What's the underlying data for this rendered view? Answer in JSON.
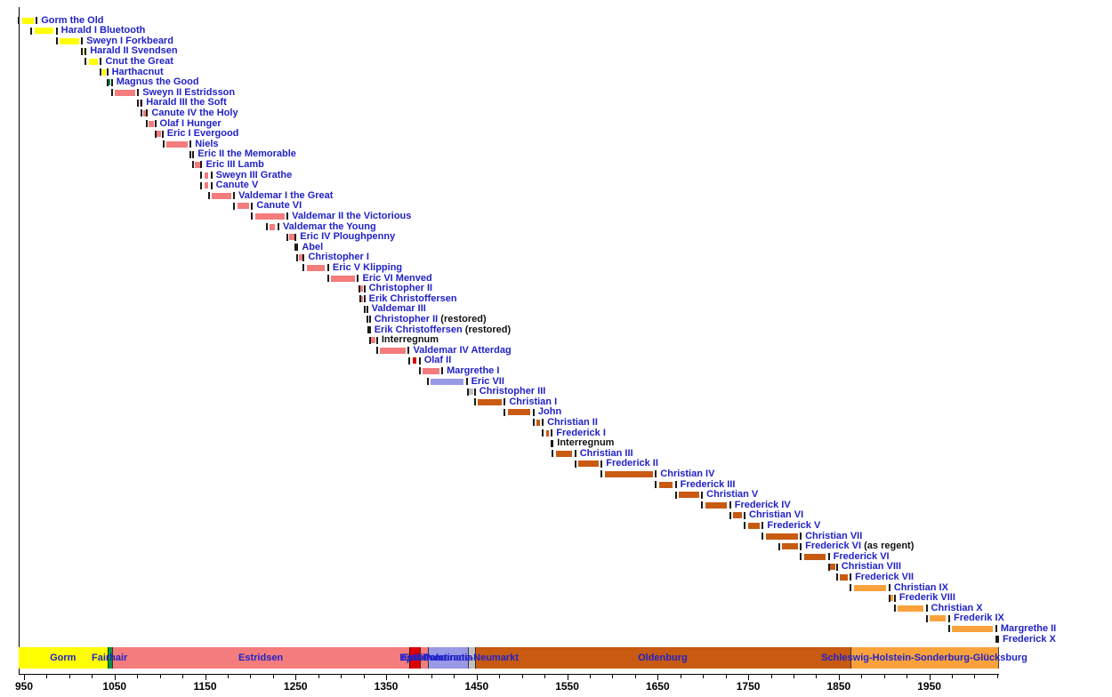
{
  "colors": {
    "monarch_label": "#2222C8",
    "suffix_label": "#111111",
    "tick": "#1a1a1a",
    "axis": "#000000",
    "background": "#ffffff"
  },
  "chart_data": {
    "type": "timeline",
    "title": "",
    "x_axis": {
      "tick_labels": [
        950,
        1050,
        1150,
        1250,
        1350,
        1450,
        1550,
        1650,
        1750,
        1850,
        1950
      ],
      "minor_tick_step": 25,
      "domain": [
        943,
        2027
      ],
      "grid": false
    },
    "houses": {
      "gorm": {
        "label": "Gorm",
        "color": "#FFFF00"
      },
      "fairhair": {
        "label": "Fairhair",
        "color": "#0B9444"
      },
      "estridsen": {
        "label": "Estridsen",
        "color": "#F47C7C"
      },
      "bjelbo": {
        "label": "Bjelbo",
        "color": "#DD0000"
      },
      "pomerania": {
        "label": "Pomerania",
        "color": "#9999E6"
      },
      "palatinate": {
        "label": "Palatinate-Neumarkt",
        "color": "#C0C0C0"
      },
      "oldenburg": {
        "label": "Oldenburg",
        "color": "#C85A12"
      },
      "glucksburg": {
        "label": "Schleswig-Holstein-Sonderburg-Glücksburg",
        "color": "#F9A23C"
      }
    },
    "monarchs": [
      {
        "name": "Gorm the Old",
        "from": 936,
        "till": 964,
        "house": "gorm"
      },
      {
        "name": "Harald I Bluetooth",
        "from": 958,
        "till": 986,
        "house": "gorm"
      },
      {
        "name": "Sweyn I Forkbeard",
        "from": 986,
        "till": 1014,
        "house": "gorm"
      },
      {
        "name": "Harald II Svendsen",
        "from": 1014,
        "till": 1018,
        "house": "gorm"
      },
      {
        "name": "Cnut the Great",
        "from": 1018,
        "till": 1035,
        "house": "gorm"
      },
      {
        "name": "Harthacnut",
        "from": 1035,
        "till": 1042,
        "house": "gorm"
      },
      {
        "name": "Magnus the Good",
        "from": 1042,
        "till": 1047,
        "house": "fairhair"
      },
      {
        "name": "Sweyn II Estridsson",
        "from": 1047,
        "till": 1076,
        "house": "estridsen"
      },
      {
        "name": "Harald III the Soft",
        "from": 1076,
        "till": 1080,
        "house": "estridsen"
      },
      {
        "name": "Canute IV the Holy",
        "from": 1080,
        "till": 1086,
        "house": "estridsen"
      },
      {
        "name": "Olaf I Hunger",
        "from": 1086,
        "till": 1095,
        "house": "estridsen"
      },
      {
        "name": "Eric I Evergood",
        "from": 1095,
        "till": 1103,
        "house": "estridsen"
      },
      {
        "name": "Niels",
        "from": 1104,
        "till": 1134,
        "house": "estridsen"
      },
      {
        "name": "Eric II the Memorable",
        "from": 1134,
        "till": 1137,
        "house": "estridsen"
      },
      {
        "name": "Eric III Lamb",
        "from": 1137,
        "till": 1146,
        "house": "estridsen"
      },
      {
        "name": "Sweyn III Grathe",
        "from": 1146,
        "till": 1157,
        "house": "estridsen"
      },
      {
        "name": "Canute V",
        "from": 1146,
        "till": 1157,
        "house": "estridsen"
      },
      {
        "name": "Valdemar I the Great",
        "from": 1154,
        "till": 1182,
        "house": "estridsen"
      },
      {
        "name": "Canute VI",
        "from": 1182,
        "till": 1202,
        "house": "estridsen"
      },
      {
        "name": "Valdemar II the Victorious",
        "from": 1202,
        "till": 1241,
        "house": "estridsen"
      },
      {
        "name": "Valdemar the Young",
        "from": 1218,
        "till": 1231,
        "house": "estridsen"
      },
      {
        "name": "Eric IV Ploughpenny",
        "from": 1241,
        "till": 1250,
        "house": "estridsen"
      },
      {
        "name": "Abel",
        "from": 1250,
        "till": 1252,
        "house": "estridsen"
      },
      {
        "name": "Christopher I",
        "from": 1252,
        "till": 1259,
        "house": "estridsen"
      },
      {
        "name": "Eric V Klipping",
        "from": 1259,
        "till": 1286,
        "house": "estridsen"
      },
      {
        "name": "Eric VI Menved",
        "from": 1286,
        "till": 1319,
        "house": "estridsen"
      },
      {
        "name": "Christopher II",
        "from": 1320,
        "till": 1326,
        "house": "estridsen"
      },
      {
        "name": "Erik Christoffersen",
        "from": 1321,
        "till": 1326,
        "house": "estridsen"
      },
      {
        "name": "Valdemar III",
        "from": 1326,
        "till": 1329,
        "house": "estridsen"
      },
      {
        "name": "Christopher II",
        "suffix": "(restored)",
        "from": 1329,
        "till": 1332,
        "house": "estridsen"
      },
      {
        "name": "Erik Christoffersen",
        "suffix": "(restored)",
        "from": 1330,
        "till": 1332,
        "house": "estridsen"
      },
      {
        "name": "Interregnum",
        "from": 1332,
        "till": 1340,
        "house": "estridsen",
        "dark": true
      },
      {
        "name": "Valdemar IV Atterdag",
        "from": 1340,
        "till": 1375,
        "house": "estridsen"
      },
      {
        "name": "Olaf II",
        "from": 1376,
        "till": 1387,
        "house": "bjelbo"
      },
      {
        "name": "Margrethe I",
        "from": 1387,
        "till": 1412,
        "house": "estridsen"
      },
      {
        "name": "Eric VII",
        "from": 1396,
        "till": 1439,
        "house": "pomerania"
      },
      {
        "name": "Christopher III",
        "from": 1440,
        "till": 1448,
        "house": "palatinate"
      },
      {
        "name": "Christian I",
        "from": 1448,
        "till": 1481,
        "house": "oldenburg"
      },
      {
        "name": "John",
        "from": 1481,
        "till": 1513,
        "house": "oldenburg"
      },
      {
        "name": "Christian II",
        "from": 1513,
        "till": 1523,
        "house": "oldenburg"
      },
      {
        "name": "Frederick I",
        "from": 1523,
        "till": 1533,
        "house": "oldenburg"
      },
      {
        "name": "Interregnum",
        "from": 1533,
        "till": 1534,
        "house": "oldenburg",
        "dark": true
      },
      {
        "name": "Christian III",
        "from": 1534,
        "till": 1559,
        "house": "oldenburg"
      },
      {
        "name": "Frederick II",
        "from": 1559,
        "till": 1588,
        "house": "oldenburg"
      },
      {
        "name": "Christian IV",
        "from": 1588,
        "till": 1648,
        "house": "oldenburg"
      },
      {
        "name": "Frederick III",
        "from": 1648,
        "till": 1670,
        "house": "oldenburg"
      },
      {
        "name": "Christian V",
        "from": 1670,
        "till": 1699,
        "house": "oldenburg"
      },
      {
        "name": "Frederick IV",
        "from": 1699,
        "till": 1730,
        "house": "oldenburg"
      },
      {
        "name": "Christian VI",
        "from": 1730,
        "till": 1746,
        "house": "oldenburg"
      },
      {
        "name": "Frederick V",
        "from": 1746,
        "till": 1766,
        "house": "oldenburg"
      },
      {
        "name": "Christian VII",
        "from": 1766,
        "till": 1808,
        "house": "oldenburg"
      },
      {
        "name": "Frederick VI",
        "suffix": "(as regent)",
        "from": 1784,
        "till": 1808,
        "house": "oldenburg"
      },
      {
        "name": "Frederick VI",
        "from": 1808,
        "till": 1839,
        "house": "oldenburg"
      },
      {
        "name": "Christian VIII",
        "from": 1839,
        "till": 1848,
        "house": "oldenburg"
      },
      {
        "name": "Frederick VII",
        "from": 1848,
        "till": 1863,
        "house": "oldenburg"
      },
      {
        "name": "Christian IX",
        "from": 1863,
        "till": 1906,
        "house": "glucksburg"
      },
      {
        "name": "Frederik VIII",
        "from": 1906,
        "till": 1912,
        "house": "glucksburg"
      },
      {
        "name": "Christian X",
        "from": 1912,
        "till": 1947,
        "house": "glucksburg"
      },
      {
        "name": "Frederik IX",
        "from": 1947,
        "till": 1972,
        "house": "glucksburg"
      },
      {
        "name": "Margrethe II",
        "from": 1972,
        "till": 2024,
        "house": "glucksburg"
      },
      {
        "name": "Frederick X",
        "from": 2024,
        "till": 2026,
        "house": "glucksburg"
      }
    ],
    "dynasties": [
      {
        "name": "Gorm",
        "from": 943,
        "till": 1042,
        "house": "gorm"
      },
      {
        "name": "Fairhair",
        "from": 1042,
        "till": 1047,
        "house": "fairhair"
      },
      {
        "name": "Estridsen",
        "from": 1047,
        "till": 1376,
        "house": "estridsen"
      },
      {
        "name": "Bjelbo",
        "from": 1376,
        "till": 1387,
        "house": "bjelbo"
      },
      {
        "name": "Estridsen",
        "from": 1387,
        "till": 1396,
        "house": "estridsen"
      },
      {
        "name": "Pomerania",
        "from": 1396,
        "till": 1440,
        "house": "pomerania"
      },
      {
        "name": "Palatinate-Neumarkt",
        "from": 1440,
        "till": 1448,
        "house": "palatinate"
      },
      {
        "name": "Oldenburg",
        "from": 1448,
        "till": 1863,
        "house": "oldenburg"
      },
      {
        "name": "Schleswig-Holstein-Sonderburg-Glücksburg",
        "from": 1863,
        "till": 2026,
        "house": "glucksburg"
      }
    ]
  }
}
